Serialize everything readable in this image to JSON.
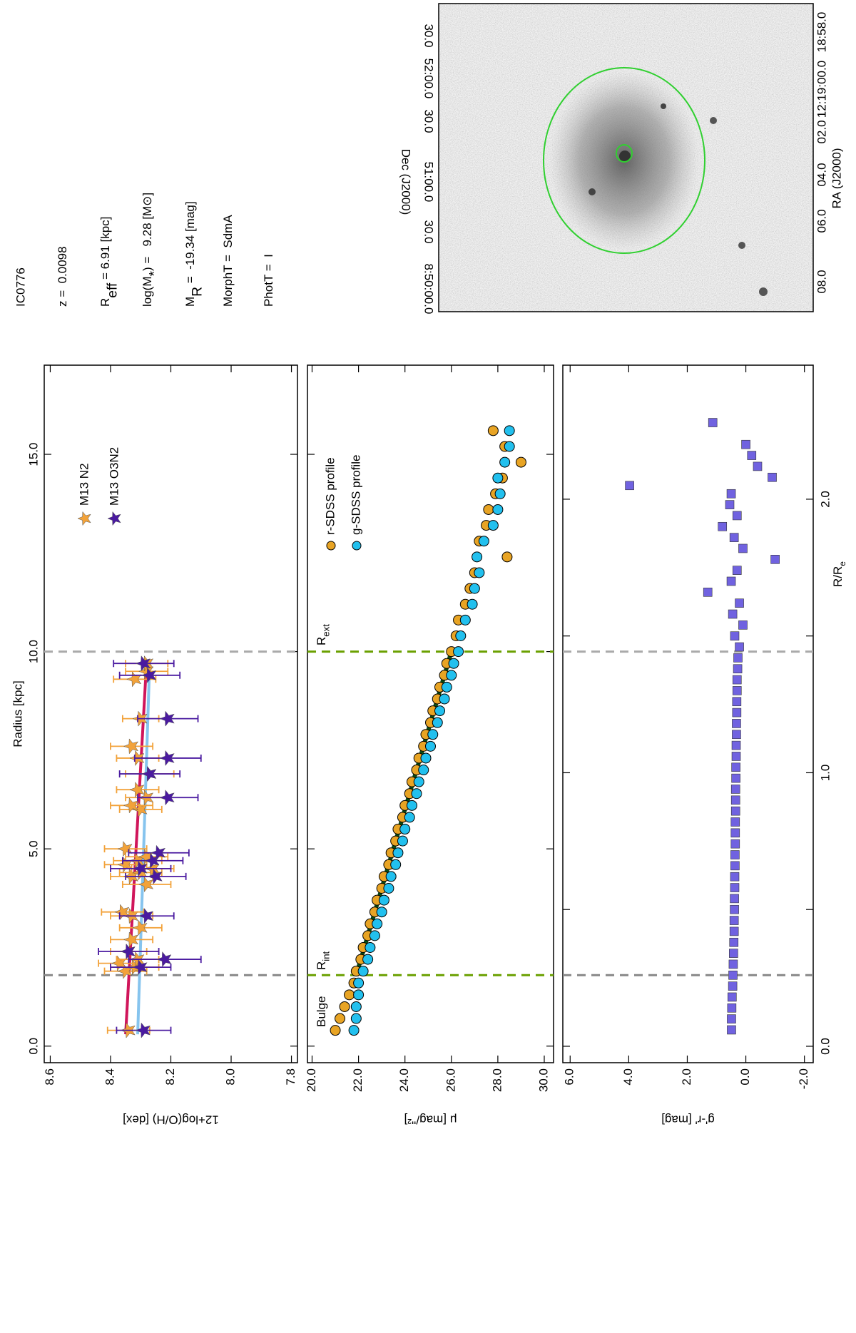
{
  "info": {
    "title": "IC0776",
    "lines": [
      {
        "main": "z =  0.0098"
      },
      {
        "main": "R",
        "sub": "eff",
        "rest": " = 6.91 [kpc]"
      },
      {
        "main": "log(M",
        "sub": "*",
        "rest": ") =   9.28 [M⊙]"
      },
      {
        "main": "M",
        "sub": "R",
        "rest": " =  -19.34 [mag]"
      },
      {
        "main": "MorphT =  SdmA"
      },
      {
        "main": "PhotT =  I"
      }
    ]
  },
  "image_panel": {
    "xlabel": "RA (J2000)",
    "ylabel": "Dec (J2000)",
    "ra_labels": [
      "08.0",
      "06.0",
      "04.0",
      "02.0",
      "12:19:00.0",
      "18:58.0"
    ],
    "dec_labels": [
      "8:50:00.0",
      "30.0",
      "51:00.0",
      "30.0",
      "52:00.0",
      "30.0"
    ]
  },
  "chart_data": [
    {
      "type": "scatter",
      "xlabel": "Radius [kpc]",
      "ylabel": "12+log(O/H) [dex]",
      "xlim": [
        -0.42,
        17.26
      ],
      "ylim": [
        7.78,
        8.62
      ],
      "xticks": [
        {
          "value": 0,
          "label": "0.0"
        },
        {
          "value": 5,
          "label": "5.0"
        },
        {
          "value": 10,
          "label": "10.0"
        },
        {
          "value": 15,
          "label": "15.0"
        }
      ],
      "yticks": [
        {
          "value": 8.6,
          "label": "8.6"
        },
        {
          "value": 8.4,
          "label": "8.4"
        },
        {
          "value": 8.2,
          "label": "8.2"
        },
        {
          "value": 8,
          "label": "8.0"
        },
        {
          "value": 7.8,
          "label": "7.8"
        }
      ],
      "rint": 1.8,
      "rext": 10.0,
      "series": [
        {
          "name": "M13 N2",
          "color": "#f2a23a",
          "x": [
            0.4,
            1.9,
            2.0,
            2.1,
            2.2,
            2.4,
            2.7,
            3.0,
            3.3,
            3.4,
            4.1,
            4.3,
            4.4,
            4.5,
            4.6,
            4.7,
            4.8,
            5.0,
            6.0,
            6.1,
            6.3,
            6.5,
            6.9,
            7.3,
            7.6,
            8.3,
            9.3,
            9.5,
            9.7
          ],
          "values": [
            8.34,
            8.35,
            8.32,
            8.37,
            8.31,
            8.34,
            8.33,
            8.3,
            8.33,
            8.36,
            8.28,
            8.33,
            8.3,
            8.26,
            8.35,
            8.31,
            8.28,
            8.35,
            8.3,
            8.33,
            8.28,
            8.31,
            8.27,
            8.31,
            8.33,
            8.3,
            8.32,
            8.28,
            8.28
          ],
          "errors": [
            0.07,
            0.07,
            0.08,
            0.07,
            0.07,
            0.06,
            0.07,
            0.07,
            0.07,
            0.07,
            0.08,
            0.07,
            0.07,
            0.07,
            0.07,
            0.08,
            0.07,
            0.07,
            0.07,
            0.07,
            0.07,
            0.07,
            0.08,
            0.07,
            0.07,
            0.06,
            0.07,
            0.07,
            0.07
          ]
        },
        {
          "name": "M13 O3N2",
          "color": "#4a1aa0",
          "x": [
            0.4,
            2.0,
            2.2,
            2.4,
            3.3,
            4.3,
            4.5,
            4.7,
            4.9,
            6.3,
            6.9,
            7.3,
            8.3,
            9.4,
            9.7
          ],
          "values": [
            8.29,
            8.3,
            8.22,
            8.34,
            8.28,
            8.25,
            8.3,
            8.26,
            8.24,
            8.21,
            8.27,
            8.21,
            8.21,
            8.27,
            8.29
          ],
          "errors": [
            0.09,
            0.1,
            0.12,
            0.1,
            0.09,
            0.1,
            0.1,
            0.1,
            0.1,
            0.1,
            0.1,
            0.11,
            0.1,
            0.1,
            0.1
          ]
        }
      ],
      "fits": [
        {
          "color": "#d0155a",
          "x": [
            0.3,
            9.8
          ],
          "values": [
            8.35,
            8.28
          ]
        },
        {
          "color": "#86c4ee",
          "x": [
            0.3,
            9.8
          ],
          "values": [
            8.31,
            8.27
          ]
        }
      ]
    },
    {
      "type": "scatter",
      "ylabel": "μ [mag/''²]",
      "xlim": [
        -0.42,
        17.26
      ],
      "ylim": [
        19.8,
        30.4
      ],
      "y_inverted": true,
      "yticks": [
        {
          "value": 20,
          "label": "20.0"
        },
        {
          "value": 22,
          "label": "22.0"
        },
        {
          "value": 24,
          "label": "24.0"
        },
        {
          "value": 26,
          "label": "26.0"
        },
        {
          "value": 28,
          "label": "28.0"
        },
        {
          "value": 30,
          "label": "30.0"
        }
      ],
      "annotations": [
        {
          "main": "Bulge"
        },
        {
          "main": "R",
          "sub": "int"
        },
        {
          "main": "R",
          "sub": "ext"
        }
      ],
      "series": [
        {
          "name": "r-SDSS profile",
          "color": "#e8a424",
          "x": [
            0.4,
            0.7,
            1.0,
            1.3,
            1.6,
            1.9,
            2.2,
            2.5,
            2.8,
            3.1,
            3.4,
            3.7,
            4.0,
            4.3,
            4.6,
            4.9,
            5.2,
            5.5,
            5.8,
            6.1,
            6.4,
            6.7,
            7.0,
            7.3,
            7.6,
            7.9,
            8.2,
            8.5,
            8.8,
            9.1,
            9.4,
            9.7,
            10.0,
            10.4,
            10.8,
            11.2,
            11.6,
            12.0,
            12.4,
            12.8,
            13.2,
            13.6,
            14.0,
            14.4,
            14.8,
            15.2,
            15.6
          ],
          "values": [
            21.0,
            21.2,
            21.4,
            21.6,
            21.8,
            21.9,
            22.1,
            22.2,
            22.4,
            22.5,
            22.7,
            22.8,
            23.0,
            23.1,
            23.3,
            23.4,
            23.6,
            23.7,
            23.9,
            24.0,
            24.2,
            24.3,
            24.5,
            24.6,
            24.8,
            24.9,
            25.1,
            25.2,
            25.4,
            25.5,
            25.7,
            25.8,
            26.0,
            26.2,
            26.3,
            26.6,
            26.8,
            27.0,
            28.4,
            27.2,
            27.5,
            27.6,
            27.9,
            28.2,
            29.0,
            28.3,
            27.8
          ]
        },
        {
          "name": "g-SDSS profile",
          "color": "#22c0ee",
          "x": [
            0.4,
            0.7,
            1.0,
            1.3,
            1.6,
            1.9,
            2.2,
            2.5,
            2.8,
            3.1,
            3.4,
            3.7,
            4.0,
            4.3,
            4.6,
            4.9,
            5.2,
            5.5,
            5.8,
            6.1,
            6.4,
            6.7,
            7.0,
            7.3,
            7.6,
            7.9,
            8.2,
            8.5,
            8.8,
            9.1,
            9.4,
            9.7,
            10.0,
            10.4,
            10.8,
            11.2,
            11.6,
            12.0,
            12.4,
            12.8,
            13.2,
            13.6,
            14.0,
            14.4,
            14.8,
            15.2,
            15.6
          ],
          "values": [
            21.8,
            21.9,
            21.9,
            22.0,
            22.0,
            22.2,
            22.4,
            22.5,
            22.7,
            22.8,
            23.0,
            23.1,
            23.3,
            23.4,
            23.6,
            23.7,
            23.9,
            24.0,
            24.2,
            24.3,
            24.5,
            24.6,
            24.8,
            24.9,
            25.1,
            25.2,
            25.4,
            25.5,
            25.7,
            25.8,
            26.0,
            26.1,
            26.3,
            26.4,
            26.6,
            26.9,
            27.0,
            27.2,
            27.1,
            27.4,
            27.8,
            28.0,
            28.1,
            28.0,
            28.3,
            28.5,
            28.5
          ]
        }
      ],
      "fits": [
        {
          "color": "#0b4a14",
          "x": [
            1.8,
            10.0
          ],
          "values": [
            21.9,
            26.0
          ]
        }
      ]
    },
    {
      "type": "scatter",
      "xlabel": "R/R",
      "xlabel_sub": "e",
      "ylabel": "g'-r' [mag]",
      "xlim": [
        -0.06,
        2.49
      ],
      "ylim": [
        -2.3,
        6.25
      ],
      "xticks": [
        {
          "value": 0,
          "label": "0.0"
        },
        0.5,
        {
          "value": 1,
          "label": "1.0"
        },
        1.5,
        {
          "value": 2,
          "label": "2.0"
        }
      ],
      "yticks": [
        {
          "value": 6,
          "label": "6.0"
        },
        {
          "value": 4,
          "label": "4.0"
        },
        {
          "value": 2,
          "label": "2.0"
        },
        {
          "value": 0,
          "label": "0.0"
        },
        {
          "value": -2,
          "label": "-2.0"
        }
      ],
      "series": [
        {
          "color": "#7062e0",
          "x": [
            0.06,
            0.1,
            0.14,
            0.18,
            0.22,
            0.26,
            0.3,
            0.34,
            0.38,
            0.42,
            0.46,
            0.5,
            0.54,
            0.58,
            0.62,
            0.66,
            0.7,
            0.74,
            0.78,
            0.82,
            0.86,
            0.9,
            0.94,
            0.98,
            1.02,
            1.06,
            1.1,
            1.14,
            1.18,
            1.22,
            1.26,
            1.3,
            1.34,
            1.38,
            1.42,
            1.46,
            1.5,
            1.54,
            1.58,
            1.62,
            1.66,
            1.7,
            1.74,
            1.78,
            1.82,
            1.86,
            1.9,
            1.94,
            1.98,
            2.02,
            2.05,
            2.08,
            2.12,
            2.16,
            2.2,
            2.28
          ],
          "values": [
            0.49,
            0.49,
            0.48,
            0.47,
            0.45,
            0.44,
            0.43,
            0.42,
            0.41,
            0.4,
            0.4,
            0.39,
            0.39,
            0.38,
            0.38,
            0.37,
            0.37,
            0.36,
            0.36,
            0.36,
            0.35,
            0.35,
            0.35,
            0.34,
            0.34,
            0.33,
            0.33,
            0.32,
            0.32,
            0.31,
            0.31,
            0.3,
            0.3,
            0.28,
            0.27,
            0.22,
            0.38,
            0.1,
            0.45,
            0.22,
            1.3,
            0.5,
            0.3,
            -1.0,
            0.1,
            0.4,
            0.8,
            0.3,
            0.55,
            0.5,
            3.97,
            -0.9,
            -0.4,
            -0.2,
            0.0,
            1.13
          ]
        }
      ]
    }
  ]
}
